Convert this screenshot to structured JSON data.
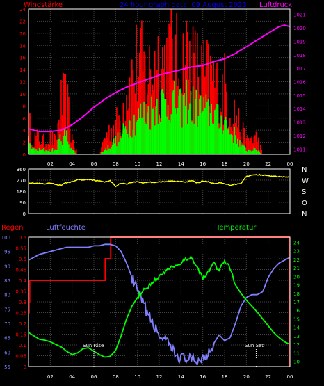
{
  "header": {
    "title": "24 hour graph data, 09 August 2023",
    "left_label": "Windstärke",
    "right_label": "Luftdruck"
  },
  "compass": [
    "N",
    "W",
    "S",
    "O",
    "N"
  ],
  "bottom_labels": {
    "regen": "Regen",
    "luftfeuchte": "Luftfeuchte",
    "temperatur": "Temperatur",
    "sun_rise": "Sun Rise",
    "sun_set": "Sun Set"
  },
  "colors": {
    "wind_gust": "#ff0000",
    "wind_avg": "#00ff00",
    "pressure": "#ff00ff",
    "direction": "#ffff00",
    "rain": "#ff0000",
    "humidity": "#8080ff",
    "temperature": "#00ff00",
    "title": "#0000ff"
  },
  "chart_data": [
    {
      "type": "bar",
      "name": "wind-pressure",
      "x_ticks": [
        "02",
        "04",
        "06",
        "08",
        "10",
        "12",
        "14",
        "16",
        "18",
        "20",
        "22",
        "00"
      ],
      "y_left_ticks": [
        0,
        2,
        4,
        6,
        8,
        10,
        12,
        14,
        16,
        18,
        20,
        22,
        24
      ],
      "y_left_range": [
        0,
        24
      ],
      "y_right_ticks": [
        1011,
        1012,
        1013,
        1014,
        1015,
        1016,
        1017,
        1018,
        1019,
        1020,
        1021
      ],
      "y_right_range": [
        1010.6,
        1021.4
      ],
      "x_range": [
        0,
        24
      ],
      "gust_profile": {
        "x": [
          0,
          0.5,
          1,
          1.5,
          2,
          2.5,
          3,
          3.5,
          4,
          4.5,
          5,
          5.5,
          6,
          6.5,
          7,
          7.5,
          8,
          8.5,
          9,
          9.5,
          10,
          10.5,
          11,
          11.5,
          12,
          12.5,
          13,
          13.5,
          14,
          14.5,
          15,
          15.5,
          16,
          16.5,
          17,
          17.5,
          18,
          18.5,
          19,
          19.5,
          20,
          20.5,
          21,
          21.5,
          22,
          22.5,
          23,
          23.5,
          24
        ],
        "values": [
          8,
          4,
          4,
          3,
          4,
          3,
          12,
          13,
          4,
          0,
          0,
          0,
          0,
          0,
          4,
          6,
          7,
          9,
          16,
          18,
          22,
          20,
          19,
          21,
          23,
          22,
          24,
          22,
          20,
          24,
          21,
          20,
          19,
          18,
          18,
          14,
          16,
          12,
          10,
          6,
          3,
          4,
          4,
          0,
          0,
          0,
          0,
          0,
          0
        ]
      },
      "avg_profile": {
        "x": [
          0,
          0.5,
          1,
          1.5,
          2,
          2.5,
          3,
          3.5,
          4,
          4.5,
          5,
          5.5,
          6,
          6.5,
          7,
          7.5,
          8,
          8.5,
          9,
          9.5,
          10,
          10.5,
          11,
          11.5,
          12,
          12.5,
          13,
          13.5,
          14,
          14.5,
          15,
          15.5,
          16,
          16.5,
          17,
          17.5,
          18,
          18.5,
          19,
          19.5,
          20,
          20.5,
          21,
          21.5,
          22,
          22.5,
          23,
          23.5,
          24
        ],
        "values": [
          3,
          1,
          1,
          1,
          1,
          1,
          4,
          4,
          1,
          0,
          0,
          0,
          0,
          0,
          1,
          2,
          3,
          4,
          6,
          7,
          8,
          9,
          9,
          10,
          12,
          11,
          12,
          11,
          10,
          12,
          11,
          10,
          10,
          9,
          10,
          7,
          8,
          5,
          4,
          2,
          1,
          1,
          1,
          0,
          0,
          0,
          0,
          0,
          0
        ]
      },
      "pressure": {
        "x": [
          0,
          1,
          2,
          3,
          4,
          5,
          6,
          7,
          8,
          9,
          10,
          11,
          12,
          13,
          14,
          15,
          16,
          17,
          18,
          19,
          20,
          21,
          22,
          23,
          23.5,
          24
        ],
        "values": [
          1012.5,
          1012.3,
          1012.3,
          1012.4,
          1012.8,
          1013.4,
          1014.1,
          1014.7,
          1015.2,
          1015.6,
          1015.9,
          1016.2,
          1016.5,
          1016.7,
          1016.9,
          1017.1,
          1017.2,
          1017.5,
          1017.7,
          1018.1,
          1018.6,
          1019.1,
          1019.6,
          1020.1,
          1020.2,
          1020.1
        ]
      }
    },
    {
      "type": "line",
      "name": "wind-direction",
      "x_range": [
        0,
        24
      ],
      "y_range": [
        0,
        360
      ],
      "y_ticks": [
        0,
        90,
        180,
        270,
        360
      ],
      "x": [
        0,
        0.5,
        1,
        1.5,
        2,
        2.5,
        3,
        3.5,
        4,
        4.5,
        5,
        5.5,
        6,
        6.5,
        7,
        7.5,
        8,
        8.5,
        9,
        9.5,
        10,
        10.5,
        11,
        11.5,
        12,
        12.5,
        13,
        13.5,
        14,
        14.5,
        15,
        15.5,
        16,
        16.5,
        17,
        17.5,
        18,
        18.5,
        19,
        19.5,
        20,
        20.5,
        21,
        21.5,
        22,
        22.5,
        23,
        23.5,
        24
      ],
      "values": [
        250,
        245,
        243,
        238,
        246,
        235,
        230,
        250,
        255,
        275,
        272,
        278,
        270,
        262,
        258,
        265,
        220,
        246,
        240,
        252,
        258,
        248,
        255,
        252,
        257,
        255,
        263,
        260,
        262,
        256,
        265,
        248,
        262,
        258,
        242,
        248,
        240,
        230,
        238,
        245,
        300,
        310,
        315,
        312,
        305,
        300,
        298,
        295,
        296
      ]
    },
    {
      "type": "line",
      "name": "rain-humidity-temperature",
      "x_range": [
        0,
        24
      ],
      "rain_ticks": [
        0,
        0.05,
        0.1,
        0.15,
        0.2,
        0.25,
        0.3,
        0.35,
        0.4,
        0.45,
        0.5,
        0.55,
        0.6
      ],
      "rain_range": [
        0,
        0.6
      ],
      "humidity_ticks": [
        55,
        60,
        65,
        70,
        75,
        80,
        85,
        90,
        95,
        100
      ],
      "humidity_range": [
        55,
        100
      ],
      "temperature_ticks": [
        10,
        11,
        12,
        13,
        14,
        15,
        16,
        17,
        18,
        19,
        20,
        21,
        22,
        23,
        24
      ],
      "temperature_range": [
        9.4,
        24.6
      ],
      "rain": {
        "x": [
          0,
          0.05,
          0.1,
          0.15,
          0.2,
          7.0,
          7.05,
          7.1,
          7.5,
          7.55,
          11.9,
          11.95,
          24
        ],
        "values": [
          0.25,
          0.3,
          0.4,
          0.4,
          0.4,
          0.4,
          0.5,
          0.5,
          0.5,
          0.6,
          0.6,
          0.6,
          0.6
        ]
      },
      "humidity": {
        "x": [
          0,
          0.5,
          1,
          1.5,
          2,
          2.5,
          3,
          3.5,
          4,
          4.5,
          5,
          5.5,
          6,
          6.5,
          7,
          7.5,
          8,
          8.5,
          9,
          9.5,
          10,
          10.5,
          11,
          11.5,
          12,
          12.5,
          13,
          13.5,
          14,
          14.5,
          15,
          15.5,
          16,
          16.5,
          17,
          17.5,
          18,
          18.5,
          19,
          19.5,
          20,
          20.5,
          21,
          21.5,
          22,
          22.5,
          23,
          23.5,
          24
        ],
        "values": [
          92,
          93,
          94,
          94.5,
          95,
          95.5,
          96,
          96.5,
          96.5,
          96.5,
          96.5,
          96.5,
          97,
          97,
          97.5,
          97.5,
          97,
          95,
          91,
          86,
          81,
          77,
          73,
          69,
          66,
          64,
          62,
          59,
          58,
          58,
          57,
          57,
          58,
          60,
          63,
          66,
          64,
          65,
          70,
          76,
          79,
          80,
          80,
          81,
          86,
          89,
          91,
          92,
          93
        ]
      },
      "temperature": {
        "x": [
          0,
          0.5,
          1,
          1.5,
          2,
          2.5,
          3,
          3.5,
          4,
          4.5,
          5,
          5.5,
          6,
          6.5,
          7,
          7.5,
          8,
          8.5,
          9,
          9.5,
          10,
          10.5,
          11,
          11.5,
          12,
          12.5,
          13,
          13.5,
          14,
          14.5,
          15,
          15.5,
          16,
          16.5,
          17,
          17.5,
          18,
          18.5,
          19,
          19.5,
          20,
          20.5,
          21,
          21.5,
          22,
          22.5,
          23,
          23.5,
          24
        ],
        "values": [
          13.4,
          13.0,
          12.6,
          12.5,
          12.3,
          12.0,
          11.7,
          11.2,
          10.8,
          11.0,
          11.5,
          11.6,
          11.2,
          10.8,
          10.5,
          10.6,
          11.3,
          13.0,
          15.0,
          16.5,
          17.5,
          18.3,
          18.8,
          19.5,
          20.0,
          20.4,
          21.0,
          21.3,
          21.5,
          22.0,
          22.3,
          21.0,
          19.8,
          20.5,
          21.5,
          20.8,
          21.8,
          21.0,
          19.0,
          18.0,
          17.2,
          16.5,
          15.8,
          15.0,
          14.2,
          13.4,
          12.8,
          12.3,
          12.0
        ]
      },
      "sun_rise_hour": 6.0,
      "sun_set_hour": 20.9
    }
  ]
}
